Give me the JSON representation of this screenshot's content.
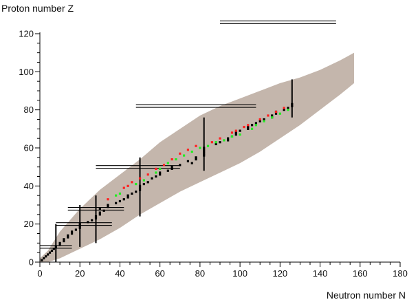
{
  "chart_data": {
    "type": "scatter",
    "xlabel": "Neutron number N",
    "ylabel": "Proton number Z",
    "xlim": [
      0,
      180
    ],
    "ylim": [
      0,
      120
    ],
    "xticks": [
      0,
      20,
      40,
      60,
      80,
      100,
      120,
      140,
      160,
      180
    ],
    "yticks": [
      0,
      20,
      40,
      60,
      80,
      100,
      120
    ],
    "grid": false,
    "colors": {
      "known_nuclides": "#c4b6ac",
      "stable": "#000000",
      "beta_plus": "#ff2020",
      "beta_minus": "#22ee22",
      "magic_lines": "#000000"
    },
    "known_nuclides_band": [
      {
        "n": 0,
        "z_min": 0,
        "z_max": 2
      },
      {
        "n": 4,
        "z_min": 0,
        "z_max": 6
      },
      {
        "n": 10,
        "z_min": 2,
        "z_max": 16
      },
      {
        "n": 20,
        "z_min": 7,
        "z_max": 28
      },
      {
        "n": 30,
        "z_min": 12,
        "z_max": 38
      },
      {
        "n": 40,
        "z_min": 18,
        "z_max": 46
      },
      {
        "n": 50,
        "z_min": 25,
        "z_max": 54
      },
      {
        "n": 60,
        "z_min": 31,
        "z_max": 63
      },
      {
        "n": 70,
        "z_min": 37,
        "z_max": 70
      },
      {
        "n": 80,
        "z_min": 42,
        "z_max": 77
      },
      {
        "n": 90,
        "z_min": 47,
        "z_max": 82
      },
      {
        "n": 100,
        "z_min": 52,
        "z_max": 86
      },
      {
        "n": 110,
        "z_min": 58,
        "z_max": 90
      },
      {
        "n": 120,
        "z_min": 65,
        "z_max": 94
      },
      {
        "n": 130,
        "z_min": 72,
        "z_max": 97
      },
      {
        "n": 140,
        "z_min": 80,
        "z_max": 101
      },
      {
        "n": 150,
        "z_min": 88,
        "z_max": 106
      },
      {
        "n": 157,
        "z_min": 94,
        "z_max": 110
      }
    ],
    "stable_nuclides": [
      [
        1,
        1
      ],
      [
        2,
        2
      ],
      [
        3,
        3
      ],
      [
        4,
        4
      ],
      [
        5,
        5
      ],
      [
        6,
        6
      ],
      [
        7,
        7
      ],
      [
        8,
        8
      ],
      [
        10,
        9
      ],
      [
        10,
        10
      ],
      [
        12,
        11
      ],
      [
        12,
        12
      ],
      [
        14,
        13
      ],
      [
        14,
        14
      ],
      [
        16,
        15
      ],
      [
        16,
        16
      ],
      [
        18,
        17
      ],
      [
        20,
        18
      ],
      [
        20,
        19
      ],
      [
        20,
        20
      ],
      [
        24,
        21
      ],
      [
        26,
        22
      ],
      [
        28,
        23
      ],
      [
        28,
        24
      ],
      [
        30,
        25
      ],
      [
        30,
        26
      ],
      [
        32,
        27
      ],
      [
        30,
        28
      ],
      [
        34,
        29
      ],
      [
        34,
        30
      ],
      [
        38,
        31
      ],
      [
        40,
        32
      ],
      [
        42,
        33
      ],
      [
        44,
        34
      ],
      [
        44,
        35
      ],
      [
        46,
        36
      ],
      [
        48,
        37
      ],
      [
        50,
        38
      ],
      [
        50,
        39
      ],
      [
        50,
        40
      ],
      [
        52,
        41
      ],
      [
        54,
        42
      ],
      [
        56,
        44
      ],
      [
        58,
        45
      ],
      [
        60,
        46
      ],
      [
        60,
        47
      ],
      [
        64,
        48
      ],
      [
        66,
        49
      ],
      [
        66,
        50
      ],
      [
        70,
        51
      ],
      [
        76,
        52
      ],
      [
        74,
        53
      ],
      [
        78,
        54
      ],
      [
        78,
        55
      ],
      [
        82,
        56
      ],
      [
        82,
        57
      ],
      [
        82,
        58
      ],
      [
        82,
        59
      ],
      [
        82,
        60
      ],
      [
        88,
        62
      ],
      [
        90,
        63
      ],
      [
        94,
        64
      ],
      [
        94,
        65
      ],
      [
        96,
        66
      ],
      [
        98,
        67
      ],
      [
        98,
        68
      ],
      [
        100,
        69
      ],
      [
        104,
        70
      ],
      [
        104,
        71
      ],
      [
        106,
        72
      ],
      [
        108,
        73
      ],
      [
        110,
        74
      ],
      [
        112,
        75
      ],
      [
        116,
        76
      ],
      [
        116,
        77
      ],
      [
        118,
        78
      ],
      [
        118,
        79
      ],
      [
        122,
        80
      ],
      [
        124,
        81
      ],
      [
        126,
        82
      ],
      [
        126,
        83
      ]
    ],
    "beta_plus_emitters": [
      [
        34,
        33
      ],
      [
        42,
        39
      ],
      [
        44,
        40
      ],
      [
        46,
        42
      ],
      [
        50,
        44
      ],
      [
        54,
        46
      ],
      [
        58,
        49
      ],
      [
        62,
        51
      ],
      [
        66,
        54
      ],
      [
        70,
        57
      ],
      [
        74,
        59
      ],
      [
        78,
        61
      ],
      [
        86,
        63
      ],
      [
        90,
        65
      ],
      [
        96,
        68
      ],
      [
        98,
        69
      ],
      [
        102,
        71
      ],
      [
        104,
        72
      ],
      [
        110,
        75
      ],
      [
        114,
        77
      ],
      [
        118,
        79
      ],
      [
        122,
        81
      ]
    ],
    "beta_minus_emitters": [
      [
        38,
        35
      ],
      [
        40,
        36
      ],
      [
        48,
        41
      ],
      [
        52,
        43
      ],
      [
        58,
        47
      ],
      [
        60,
        49
      ],
      [
        64,
        52
      ],
      [
        68,
        54
      ],
      [
        72,
        56
      ],
      [
        76,
        58
      ],
      [
        80,
        60
      ],
      [
        84,
        61
      ],
      [
        88,
        63
      ],
      [
        92,
        64
      ],
      [
        96,
        66
      ],
      [
        100,
        67
      ],
      [
        106,
        70
      ],
      [
        108,
        72
      ],
      [
        112,
        74
      ],
      [
        116,
        76
      ],
      [
        120,
        78
      ],
      [
        124,
        80
      ]
    ],
    "magic_numbers": [
      {
        "value": 8,
        "n_range": [
          0,
          16
        ],
        "z_range": [
          0,
          20
        ]
      },
      {
        "value": 20,
        "n_range": [
          8,
          36
        ],
        "z_range": [
          8,
          30
        ]
      },
      {
        "value": 28,
        "n_range": [
          14,
          42
        ],
        "z_range": [
          10,
          35
        ]
      },
      {
        "value": 50,
        "n_range": [
          28,
          70
        ],
        "z_range": [
          24,
          55
        ]
      },
      {
        "value": 82,
        "n_range": [
          48,
          108
        ],
        "z_range": [
          48,
          76
        ]
      },
      {
        "value": 126,
        "n_range": [
          90,
          148
        ],
        "z_range": [
          76,
          96
        ]
      }
    ]
  }
}
